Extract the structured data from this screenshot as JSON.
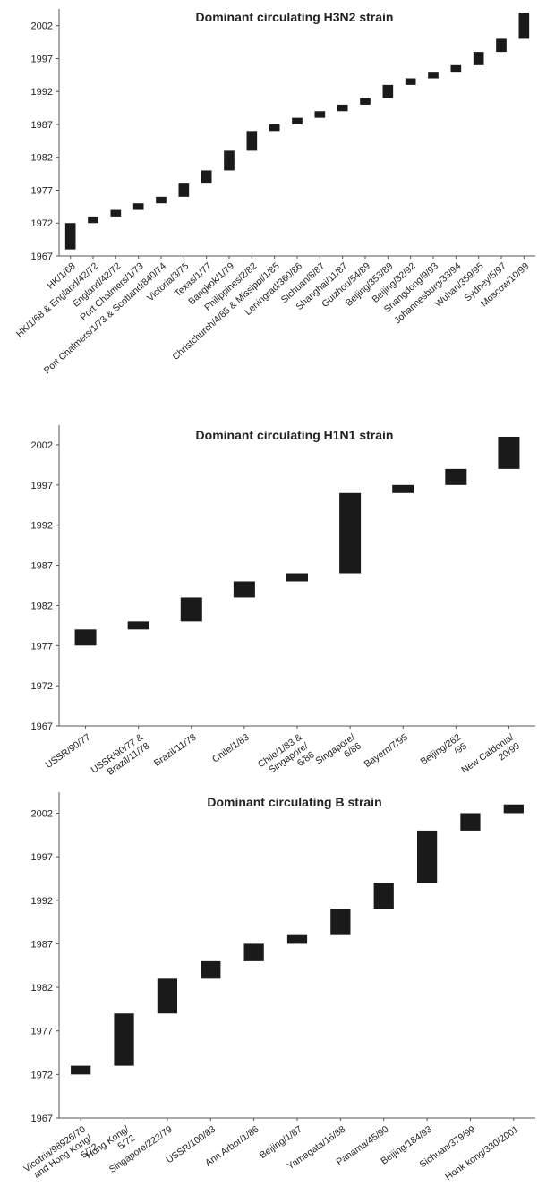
{
  "chart_data": [
    {
      "type": "bar",
      "subtype": "floating-range",
      "title": "Dominant circulating H3N2 strain",
      "xlabel": "",
      "ylabel": "",
      "ylim": [
        1967,
        2004
      ],
      "yticks": [
        1967,
        1972,
        1977,
        1982,
        1987,
        1992,
        1997,
        2002
      ],
      "grid": false,
      "categories": [
        "HK/1/68",
        "HK/1/68 & England/42/72",
        "England/42/72",
        "Port Chalmers/1/73",
        "Port Chalmers/1/73 & Scotland/840/74",
        "Victoria/3/75",
        "Texas/1/77",
        "Bangkok/1/79",
        "Philippines/2/82",
        "Christchurch/4/85 & Missippi/1/85",
        "Leningrad/360/86",
        "Sichuan/8/87",
        "Shanghai/11/87",
        "Guizhou/54/89",
        "Beijing/353/89",
        "Beijing/32/92",
        "Shangdong/9/93",
        "Johannesburg/33/94",
        "Wuhan/359/95",
        "Sydney/5/97",
        "Moscow/10/99"
      ],
      "ranges": [
        [
          1968,
          1972
        ],
        [
          1972,
          1973
        ],
        [
          1973,
          1974
        ],
        [
          1974,
          1975
        ],
        [
          1975,
          1976
        ],
        [
          1976,
          1978
        ],
        [
          1978,
          1980
        ],
        [
          1980,
          1983
        ],
        [
          1983,
          1986
        ],
        [
          1986,
          1987
        ],
        [
          1987,
          1988
        ],
        [
          1988,
          1989
        ],
        [
          1989,
          1990
        ],
        [
          1990,
          1991
        ],
        [
          1991,
          1993
        ],
        [
          1993,
          1994
        ],
        [
          1994,
          1995
        ],
        [
          1995,
          1996
        ],
        [
          1996,
          1998
        ],
        [
          1998,
          2000
        ],
        [
          2000,
          2004
        ]
      ]
    },
    {
      "type": "bar",
      "subtype": "floating-range",
      "title": "Dominant circulating H1N1 strain",
      "xlabel": "",
      "ylabel": "",
      "ylim": [
        1967,
        2004
      ],
      "yticks": [
        1967,
        1972,
        1977,
        1982,
        1987,
        1992,
        1997,
        2002
      ],
      "grid": false,
      "categories": [
        [
          "USSR/90/77"
        ],
        [
          "USSR/90/77 &",
          "Brazil/11/78"
        ],
        [
          "Brazil/11/78"
        ],
        [
          "Chile/1/83"
        ],
        [
          "Chile/1/83 &",
          "Singapore/",
          "6/86"
        ],
        [
          "Singapore/",
          "6/86"
        ],
        [
          "Bayern/7/95"
        ],
        [
          "Beijing/262",
          "/95"
        ],
        [
          "New Caldonia/",
          "20/99"
        ]
      ],
      "ranges": [
        [
          1977,
          1979
        ],
        [
          1979,
          1980
        ],
        [
          1980,
          1983
        ],
        [
          1983,
          1985
        ],
        [
          1985,
          1986
        ],
        [
          1986,
          1996
        ],
        [
          1996,
          1997
        ],
        [
          1997,
          1999
        ],
        [
          1999,
          2003
        ]
      ]
    },
    {
      "type": "bar",
      "subtype": "floating-range",
      "title": "Dominant circulating B strain",
      "xlabel": "",
      "ylabel": "",
      "ylim": [
        1967,
        2004
      ],
      "yticks": [
        1967,
        1972,
        1977,
        1982,
        1987,
        1992,
        1997,
        2002
      ],
      "grid": false,
      "categories": [
        [
          "Vicotria/98926/70",
          "and Hong Kong/",
          "5/72"
        ],
        [
          "Hong Kong/",
          "5/72"
        ],
        [
          "Singapore/222/79"
        ],
        [
          "USSR/100/83"
        ],
        [
          "Ann Arbor/1/86"
        ],
        [
          "Beijing/1/87"
        ],
        [
          "Yamagata/16/88"
        ],
        [
          "Panama/45/90"
        ],
        [
          "Beijing/184/93"
        ],
        [
          "Sichuan/379/99"
        ],
        [
          "Honk kong/330/2001"
        ]
      ],
      "ranges": [
        [
          1972,
          1973
        ],
        [
          1973,
          1979
        ],
        [
          1979,
          1983
        ],
        [
          1983,
          1985
        ],
        [
          1985,
          1987
        ],
        [
          1987,
          1988
        ],
        [
          1988,
          1991
        ],
        [
          1991,
          1994
        ],
        [
          1994,
          2000
        ],
        [
          2000,
          2002
        ],
        [
          2002,
          2003
        ]
      ]
    }
  ]
}
